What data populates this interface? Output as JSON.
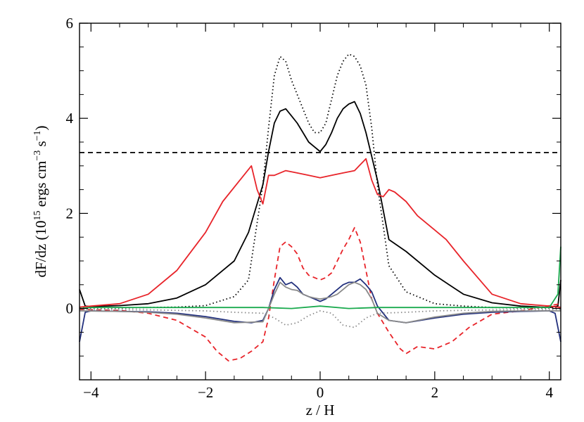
{
  "chart_data": {
    "type": "line",
    "title": "",
    "xlabel": "z / H",
    "ylabel": {
      "prefix": "dF/dz (10",
      "exp1": "15",
      "mid1": " ergs cm",
      "exp2": "−3",
      "mid2": " s",
      "exp3": "−1",
      "suffix": ")"
    },
    "xlim": [
      -4.2,
      4.2
    ],
    "ylim": [
      -1.5,
      6.0
    ],
    "x_ticks": [
      -4,
      -2,
      0,
      2,
      4
    ],
    "x_tick_labels": [
      "−4",
      "−2",
      "0",
      "2",
      "4"
    ],
    "y_ticks": [
      0,
      2,
      4,
      6
    ],
    "y_tick_labels": [
      "0",
      "2",
      "4",
      "6"
    ],
    "grid": false,
    "legend": "none",
    "series": [
      {
        "color": "#000000",
        "dash": "dotted",
        "x": [
          -4.2,
          -4.0,
          -3.5,
          -3.0,
          -2.5,
          -2.0,
          -1.5,
          -1.25,
          -1.0,
          -0.9,
          -0.8,
          -0.7,
          -0.6,
          -0.5,
          -0.4,
          -0.3,
          -0.2,
          -0.1,
          0.0,
          0.1,
          0.2,
          0.3,
          0.4,
          0.5,
          0.6,
          0.7,
          0.8,
          0.9,
          1.0,
          1.2,
          1.5,
          2.0,
          2.5,
          3.0,
          3.5,
          4.0,
          4.2
        ],
        "y": [
          0.02,
          0.01,
          0.01,
          0.02,
          0.03,
          0.06,
          0.25,
          0.6,
          2.6,
          3.8,
          4.9,
          5.3,
          5.2,
          4.8,
          4.5,
          4.2,
          3.9,
          3.7,
          3.7,
          3.9,
          4.4,
          4.9,
          5.2,
          5.35,
          5.3,
          5.1,
          4.7,
          3.8,
          2.6,
          0.9,
          0.35,
          0.1,
          0.05,
          0.02,
          0.01,
          0.01,
          0.03
        ]
      },
      {
        "color": "#000000",
        "dash": "solid",
        "x": [
          -4.2,
          -4.1,
          -4.0,
          -3.5,
          -3.0,
          -2.5,
          -2.0,
          -1.5,
          -1.25,
          -1.0,
          -0.9,
          -0.8,
          -0.7,
          -0.6,
          -0.5,
          -0.4,
          -0.3,
          -0.2,
          -0.1,
          0.0,
          0.1,
          0.2,
          0.3,
          0.4,
          0.5,
          0.6,
          0.7,
          0.8,
          0.9,
          1.0,
          1.2,
          1.5,
          2.0,
          2.5,
          3.0,
          3.5,
          4.0,
          4.15,
          4.2
        ],
        "y": [
          0.4,
          0.05,
          0.04,
          0.06,
          0.1,
          0.22,
          0.5,
          1.0,
          1.6,
          2.6,
          3.3,
          3.9,
          4.15,
          4.2,
          4.05,
          3.9,
          3.7,
          3.5,
          3.4,
          3.3,
          3.45,
          3.7,
          4.0,
          4.2,
          4.3,
          4.35,
          4.1,
          3.7,
          3.2,
          2.7,
          1.45,
          1.2,
          0.7,
          0.3,
          0.12,
          0.05,
          0.02,
          0.05,
          0.6
        ]
      },
      {
        "color": "#000000",
        "dash": "dashed",
        "x": [
          -4.2,
          4.2
        ],
        "y": [
          3.28,
          3.28
        ]
      },
      {
        "color": "#e8242a",
        "dash": "solid",
        "x": [
          -4.2,
          -4.0,
          -3.5,
          -3.0,
          -2.5,
          -2.0,
          -1.7,
          -1.4,
          -1.2,
          -1.1,
          -1.0,
          -0.9,
          -0.8,
          -0.6,
          -0.4,
          -0.2,
          0.0,
          0.2,
          0.4,
          0.6,
          0.8,
          0.9,
          1.0,
          1.1,
          1.2,
          1.3,
          1.5,
          1.7,
          2.0,
          2.2,
          2.5,
          3.0,
          3.5,
          4.0,
          4.2
        ],
        "y": [
          0.03,
          0.05,
          0.1,
          0.3,
          0.8,
          1.6,
          2.25,
          2.7,
          3.0,
          2.5,
          2.2,
          2.8,
          2.8,
          2.9,
          2.85,
          2.8,
          2.75,
          2.8,
          2.85,
          2.9,
          3.15,
          2.7,
          2.4,
          2.35,
          2.5,
          2.45,
          2.25,
          1.95,
          1.65,
          1.45,
          1.0,
          0.3,
          0.1,
          0.05,
          0.02
        ]
      },
      {
        "color": "#e8242a",
        "dash": "dashed",
        "x": [
          -4.2,
          -3.5,
          -3.0,
          -2.5,
          -2.0,
          -1.8,
          -1.6,
          -1.4,
          -1.2,
          -1.0,
          -0.9,
          -0.8,
          -0.7,
          -0.6,
          -0.5,
          -0.4,
          -0.3,
          -0.2,
          -0.1,
          0.0,
          0.1,
          0.2,
          0.3,
          0.4,
          0.5,
          0.6,
          0.7,
          0.8,
          0.9,
          1.0,
          1.2,
          1.4,
          1.5,
          1.7,
          2.0,
          2.3,
          2.6,
          3.0,
          3.5,
          4.2
        ],
        "y": [
          -0.02,
          -0.04,
          -0.1,
          -0.25,
          -0.6,
          -0.9,
          -1.1,
          -1.05,
          -0.9,
          -0.7,
          -0.2,
          0.6,
          1.3,
          1.4,
          1.3,
          1.15,
          0.85,
          0.7,
          0.65,
          0.6,
          0.65,
          0.75,
          1.0,
          1.25,
          1.45,
          1.7,
          1.4,
          0.8,
          0.2,
          -0.1,
          -0.5,
          -0.85,
          -0.95,
          -0.8,
          -0.85,
          -0.7,
          -0.4,
          -0.12,
          -0.05,
          0.1
        ]
      },
      {
        "color": "#22307d",
        "dash": "solid",
        "x": [
          -4.2,
          -4.1,
          -4.0,
          -3.5,
          -3.0,
          -2.5,
          -2.0,
          -1.5,
          -1.2,
          -1.0,
          -0.9,
          -0.8,
          -0.7,
          -0.6,
          -0.5,
          -0.4,
          -0.3,
          -0.2,
          -0.1,
          0.0,
          0.1,
          0.2,
          0.3,
          0.4,
          0.5,
          0.6,
          0.7,
          0.8,
          0.9,
          1.0,
          1.2,
          1.5,
          2.0,
          2.5,
          3.0,
          3.5,
          4.0,
          4.1,
          4.2
        ],
        "y": [
          -0.7,
          -0.08,
          -0.05,
          -0.06,
          -0.07,
          -0.1,
          -0.17,
          -0.27,
          -0.3,
          -0.25,
          0.0,
          0.4,
          0.65,
          0.5,
          0.55,
          0.45,
          0.3,
          0.25,
          0.2,
          0.15,
          0.2,
          0.3,
          0.4,
          0.5,
          0.55,
          0.55,
          0.62,
          0.5,
          0.35,
          0.05,
          -0.25,
          -0.3,
          -0.2,
          -0.12,
          -0.08,
          -0.06,
          -0.05,
          -0.1,
          -0.7
        ]
      },
      {
        "color": "#8a8a8a",
        "dash": "solid",
        "x": [
          -4.2,
          -3.5,
          -3.0,
          -2.5,
          -2.0,
          -1.5,
          -1.0,
          -0.9,
          -0.8,
          -0.7,
          -0.6,
          -0.5,
          -0.4,
          -0.3,
          -0.2,
          -0.1,
          0.0,
          0.1,
          0.2,
          0.3,
          0.4,
          0.5,
          0.6,
          0.7,
          0.8,
          0.9,
          1.0,
          1.2,
          1.5,
          2.0,
          2.5,
          3.0,
          3.5,
          4.2
        ],
        "y": [
          -0.05,
          -0.06,
          -0.08,
          -0.12,
          -0.2,
          -0.3,
          -0.28,
          0.0,
          0.3,
          0.55,
          0.45,
          0.4,
          0.38,
          0.3,
          0.25,
          0.22,
          0.2,
          0.22,
          0.25,
          0.3,
          0.4,
          0.5,
          0.55,
          0.5,
          0.4,
          0.2,
          -0.1,
          -0.25,
          -0.3,
          -0.18,
          -0.1,
          -0.06,
          -0.05,
          -0.05
        ]
      },
      {
        "color": "#8a8a8a",
        "dash": "dotted",
        "x": [
          -4.2,
          -3.0,
          -2.0,
          -1.5,
          -1.0,
          -0.8,
          -0.6,
          -0.4,
          -0.2,
          0.0,
          0.2,
          0.4,
          0.6,
          0.8,
          1.0,
          1.5,
          2.0,
          3.0,
          4.2
        ],
        "y": [
          -0.02,
          -0.03,
          -0.05,
          -0.08,
          -0.1,
          -0.2,
          -0.35,
          -0.3,
          -0.15,
          -0.05,
          -0.1,
          -0.35,
          -0.4,
          -0.2,
          -0.1,
          -0.08,
          -0.05,
          -0.03,
          -0.02
        ]
      },
      {
        "color": "#1aaa4e",
        "dash": "solid",
        "x": [
          -4.2,
          -4.0,
          -3.0,
          -2.0,
          -1.0,
          -0.5,
          0.0,
          0.5,
          1.0,
          2.0,
          3.0,
          4.0,
          4.15,
          4.2
        ],
        "y": [
          0.0,
          0.02,
          0.02,
          0.02,
          0.02,
          0.0,
          0.05,
          0.0,
          0.02,
          0.02,
          0.02,
          0.02,
          0.3,
          1.3
        ]
      }
    ]
  }
}
